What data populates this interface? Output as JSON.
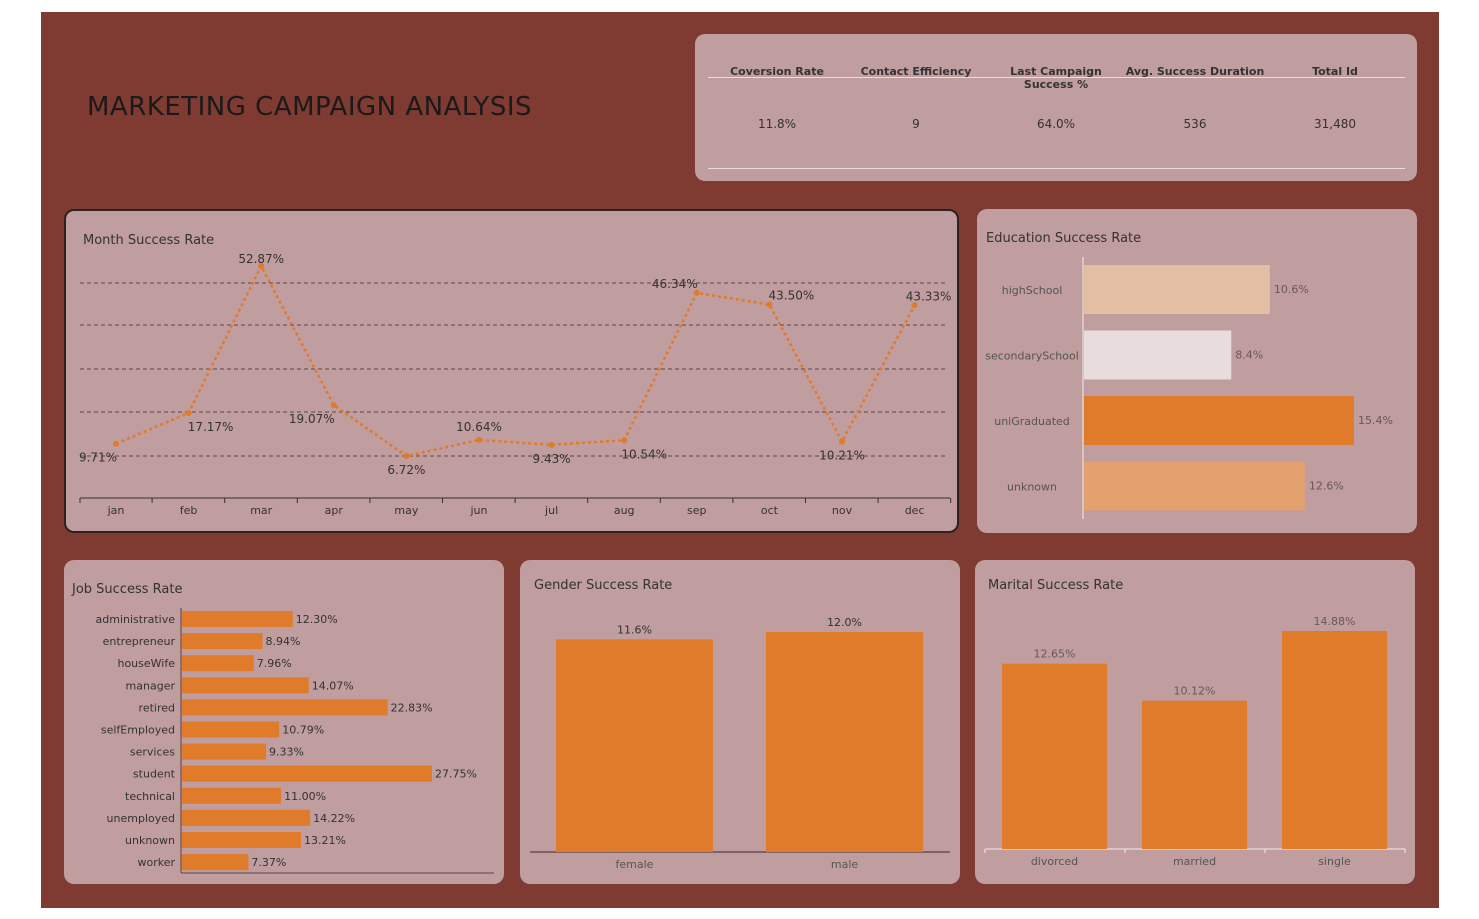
{
  "title": "MARKETING CAMPAIGN ANALYSIS",
  "kpis": [
    {
      "label": "Coversion Rate",
      "value": "11.8%"
    },
    {
      "label": "Contact Efficiency",
      "value": "9"
    },
    {
      "label": "Last Campaign Success %",
      "value": "64.0%"
    },
    {
      "label": "Avg. Success Duration",
      "value": "536"
    },
    {
      "label": "Total Id",
      "value": "31,480"
    }
  ],
  "colors": {
    "background": "#7f3a31",
    "panel": "#c09d9e",
    "accent": "#e07b2b",
    "edu_highSchool": "#e3bea2",
    "edu_secondarySchool": "#e8dcdc",
    "edu_uniGraduated": "#e07b2b",
    "edu_unknown": "#e3a16f"
  },
  "chart_data": [
    {
      "type": "line",
      "title": "Month Success Rate",
      "categories": [
        "jan",
        "feb",
        "mar",
        "apr",
        "may",
        "jun",
        "jul",
        "aug",
        "sep",
        "oct",
        "nov",
        "dec"
      ],
      "values": [
        9.71,
        17.17,
        52.87,
        19.07,
        6.72,
        10.64,
        9.43,
        10.54,
        46.34,
        43.5,
        10.21,
        43.33
      ],
      "labels": [
        "9.71%",
        "17.17%",
        "52.87%",
        "19.07%",
        "6.72%",
        "10.64%",
        "9.43%",
        "10.54%",
        "46.34%",
        "43.50%",
        "10.21%",
        "43.33%"
      ],
      "line_style": "dotted",
      "grid": true
    },
    {
      "type": "bar",
      "orientation": "horizontal",
      "title": "Education Success Rate",
      "categories": [
        "highSchool",
        "secondarySchool",
        "uniGraduated",
        "unknown"
      ],
      "values": [
        10.6,
        8.4,
        15.4,
        12.6
      ],
      "labels": [
        "10.6%",
        "8.4%",
        "15.4%",
        "12.6%"
      ]
    },
    {
      "type": "bar",
      "orientation": "horizontal",
      "title": "Job Success Rate",
      "categories": [
        "administrative",
        "entrepreneur",
        "houseWife",
        "manager",
        "retired",
        "selfEmployed",
        "services",
        "student",
        "technical",
        "unemployed",
        "unknown",
        "worker"
      ],
      "values": [
        12.3,
        8.94,
        7.96,
        14.07,
        22.83,
        10.79,
        9.33,
        27.75,
        11.0,
        14.22,
        13.21,
        7.37
      ],
      "labels": [
        "12.30%",
        "8.94%",
        "7.96%",
        "14.07%",
        "22.83%",
        "10.79%",
        "9.33%",
        "27.75%",
        "11.00%",
        "14.22%",
        "13.21%",
        "7.37%"
      ]
    },
    {
      "type": "bar",
      "title": "Gender Success Rate",
      "categories": [
        "female",
        "male"
      ],
      "values": [
        11.6,
        12.0
      ],
      "labels": [
        "11.6%",
        "12.0%"
      ]
    },
    {
      "type": "bar",
      "title": "Marital Success Rate",
      "categories": [
        "divorced",
        "married",
        "single"
      ],
      "values": [
        12.65,
        10.12,
        14.88
      ],
      "labels": [
        "12.65%",
        "10.12%",
        "14.88%"
      ]
    }
  ]
}
